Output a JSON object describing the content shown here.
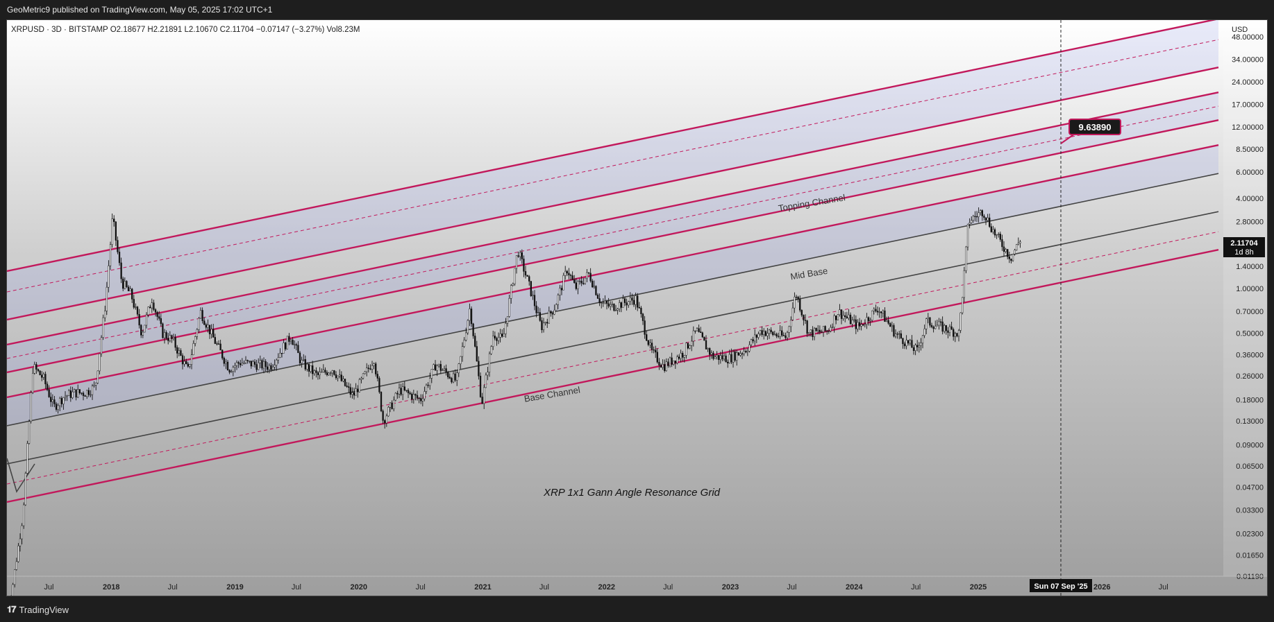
{
  "header": {
    "publisher": "GeoMetric9 published on TradingView.com, May 05, 2025 17:02 UTC+1"
  },
  "footer": {
    "brand": "TradingView"
  },
  "chart_data": {
    "type": "candlestick",
    "symbol_line": "XRPUSD · 3D · BITSTAMP  O2.18677  H2.21891  L2.10670  C2.11704  −0.07147 (−3.27%)  Vol8.23M",
    "currency": "USD",
    "title": "XRP 1x1 Gann Angle Resonance Grid",
    "annotations": [
      "Topping Channel",
      "Mid Base",
      "Base Channel"
    ],
    "price_labels": [
      "48.00000",
      "34.00000",
      "24.00000",
      "17.00000",
      "12.00000",
      "8.50000",
      "6.00000",
      "4.00000",
      "2.80000",
      "2.00000",
      "1.40000",
      "1.00000",
      "0.70000",
      "0.50000",
      "0.36000",
      "0.26000",
      "0.18000",
      "0.13000",
      "0.09000",
      "0.06500",
      "0.04700",
      "0.03300",
      "0.02300",
      "0.01650",
      "0.01190"
    ],
    "time_labels": [
      "Jul",
      "2018",
      "Jul",
      "2019",
      "Jul",
      "2020",
      "Jul",
      "2021",
      "Jul",
      "2022",
      "Jul",
      "2023",
      "Jul",
      "2024",
      "Jul",
      "2025",
      "Jul",
      "2026",
      "Jul"
    ],
    "current_price": {
      "value": "2.11704",
      "countdown": "1d 8h"
    },
    "target_label": "9.63890",
    "crosshair_date": "Sun 07 Sep '25",
    "y_scale": "log",
    "ylim": [
      0.0119,
      48
    ],
    "price_path": [
      [
        "2017-03-01",
        0.006
      ],
      [
        "2017-04-15",
        0.03
      ],
      [
        "2017-05-15",
        0.3
      ],
      [
        "2017-06-15",
        0.25
      ],
      [
        "2017-07-15",
        0.16
      ],
      [
        "2017-08-15",
        0.19
      ],
      [
        "2017-09-15",
        0.2
      ],
      [
        "2017-10-15",
        0.2
      ],
      [
        "2017-11-15",
        0.22
      ],
      [
        "2017-12-15",
        0.8
      ],
      [
        "2018-01-05",
        3.0
      ],
      [
        "2018-02-01",
        1.1
      ],
      [
        "2018-03-01",
        0.9
      ],
      [
        "2018-04-01",
        0.5
      ],
      [
        "2018-05-01",
        0.85
      ],
      [
        "2018-06-01",
        0.5
      ],
      [
        "2018-07-01",
        0.45
      ],
      [
        "2018-08-15",
        0.28
      ],
      [
        "2018-09-21",
        0.7
      ],
      [
        "2018-11-01",
        0.45
      ],
      [
        "2018-12-15",
        0.29
      ],
      [
        "2019-01-15",
        0.32
      ],
      [
        "2019-03-01",
        0.31
      ],
      [
        "2019-04-15",
        0.3
      ],
      [
        "2019-06-15",
        0.48
      ],
      [
        "2019-07-15",
        0.32
      ],
      [
        "2019-09-01",
        0.26
      ],
      [
        "2019-10-15",
        0.29
      ],
      [
        "2019-12-15",
        0.19
      ],
      [
        "2020-02-15",
        0.34
      ],
      [
        "2020-03-13",
        0.13
      ],
      [
        "2020-05-01",
        0.21
      ],
      [
        "2020-07-01",
        0.18
      ],
      [
        "2020-08-15",
        0.31
      ],
      [
        "2020-10-15",
        0.24
      ],
      [
        "2020-11-24",
        0.75
      ],
      [
        "2020-12-29",
        0.17
      ],
      [
        "2021-02-01",
        0.5
      ],
      [
        "2021-03-01",
        0.45
      ],
      [
        "2021-04-14",
        1.8
      ],
      [
        "2021-05-20",
        1.0
      ],
      [
        "2021-06-22",
        0.55
      ],
      [
        "2021-08-01",
        0.75
      ],
      [
        "2021-09-07",
        1.35
      ],
      [
        "2021-10-01",
        1.0
      ],
      [
        "2021-11-10",
        1.25
      ],
      [
        "2021-12-15",
        0.8
      ],
      [
        "2022-01-15",
        0.75
      ],
      [
        "2022-03-28",
        0.85
      ],
      [
        "2022-05-12",
        0.38
      ],
      [
        "2022-06-18",
        0.3
      ],
      [
        "2022-08-15",
        0.37
      ],
      [
        "2022-09-23",
        0.52
      ],
      [
        "2022-11-09",
        0.35
      ],
      [
        "2022-12-28",
        0.34
      ],
      [
        "2023-02-15",
        0.39
      ],
      [
        "2023-04-01",
        0.52
      ],
      [
        "2023-06-15",
        0.47
      ],
      [
        "2023-07-13",
        0.93
      ],
      [
        "2023-08-20",
        0.5
      ],
      [
        "2023-10-15",
        0.52
      ],
      [
        "2023-11-15",
        0.7
      ],
      [
        "2024-01-15",
        0.55
      ],
      [
        "2024-03-11",
        0.74
      ],
      [
        "2024-05-01",
        0.5
      ],
      [
        "2024-07-05",
        0.38
      ],
      [
        "2024-08-01",
        0.6
      ],
      [
        "2024-09-15",
        0.55
      ],
      [
        "2024-11-05",
        0.5
      ],
      [
        "2024-11-20",
        1.2
      ],
      [
        "2024-12-03",
        2.8
      ],
      [
        "2025-01-15",
        3.3
      ],
      [
        "2025-02-15",
        2.4
      ],
      [
        "2025-04-07",
        1.6
      ],
      [
        "2025-05-05",
        2.12
      ]
    ]
  }
}
